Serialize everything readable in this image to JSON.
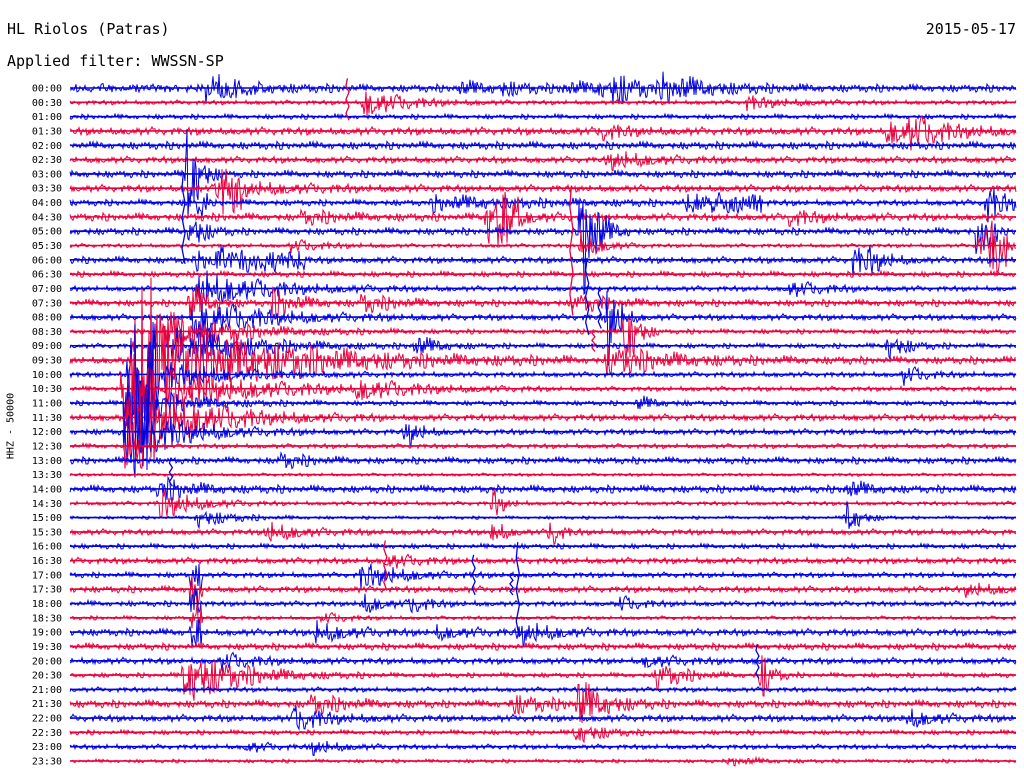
{
  "header": {
    "station": "HL Riolos (Patras)",
    "date": "2015-05-17",
    "filter": "Applied filter: WWSSN-SP"
  },
  "chart_data": {
    "type": "line",
    "subtype": "helicorder",
    "ylabel": "HHZ - 50000",
    "colors": [
      "#0000e0",
      "#e8003c"
    ],
    "row_times": [
      "00:00",
      "00:30",
      "01:00",
      "01:30",
      "02:00",
      "02:30",
      "03:00",
      "03:30",
      "04:00",
      "04:30",
      "05:00",
      "05:30",
      "06:00",
      "06:30",
      "07:00",
      "07:30",
      "08:00",
      "08:30",
      "09:00",
      "09:30",
      "10:00",
      "10:30",
      "11:00",
      "11:30",
      "12:00",
      "12:30",
      "13:00",
      "13:30",
      "14:00",
      "14:30",
      "15:00",
      "15:30",
      "16:00",
      "16:30",
      "17:00",
      "17:30",
      "18:00",
      "18:30",
      "19:00",
      "19:30",
      "20:00",
      "20:30",
      "21:00",
      "21:30",
      "22:00",
      "22:30",
      "23:00",
      "23:30"
    ],
    "minutes_per_row": 30,
    "events": [
      {
        "row": 0,
        "minute": 4.3,
        "amp": 14,
        "dur": 1.2
      },
      {
        "row": 0,
        "minute": 12.3,
        "amp": 6,
        "dur": 1.2
      },
      {
        "row": 0,
        "minute": 13.7,
        "amp": 5,
        "dur": 0.8
      },
      {
        "row": 0,
        "minute": 15.6,
        "amp": 5,
        "dur": 1.5
      },
      {
        "row": 0,
        "minute": 16.7,
        "amp": 5,
        "dur": 1.5
      },
      {
        "row": 0,
        "minute": 17.2,
        "amp": 12,
        "dur": 0.8
      },
      {
        "row": 0,
        "minute": 18.8,
        "amp": 12,
        "dur": 1.5
      },
      {
        "row": 1,
        "minute": 9.3,
        "amp": 15,
        "dur": 1.2
      },
      {
        "row": 1,
        "minute": 21.4,
        "amp": 7,
        "dur": 1.2
      },
      {
        "row": 3,
        "minute": 16.8,
        "amp": 8,
        "dur": 0.8
      },
      {
        "row": 3,
        "minute": 25.9,
        "amp": 12,
        "dur": 1.5
      },
      {
        "row": 3,
        "minute": 26.6,
        "amp": 10,
        "dur": 1.0
      },
      {
        "row": 5,
        "minute": 17.0,
        "amp": 10,
        "dur": 1.2
      },
      {
        "row": 6,
        "minute": 3.7,
        "amp": 80,
        "dur": 0.3
      },
      {
        "row": 7,
        "minute": 4.6,
        "amp": 9,
        "dur": 2.0
      },
      {
        "row": 8,
        "minute": 11.5,
        "amp": 7,
        "dur": 3.0
      },
      {
        "row": 8,
        "minute": 29.0,
        "amp": 20,
        "dur": 0.7
      },
      {
        "row": 9,
        "minute": 7.3,
        "amp": 6,
        "dur": 1.2
      },
      {
        "row": 9,
        "minute": 13.2,
        "amp": 28,
        "dur": 0.7
      },
      {
        "row": 9,
        "minute": 22.8,
        "amp": 7,
        "dur": 1.0
      },
      {
        "row": 10,
        "minute": 3.8,
        "amp": 22,
        "dur": 0.4
      },
      {
        "row": 10,
        "minute": 16.2,
        "amp": 95,
        "dur": 0.4
      },
      {
        "row": 11,
        "minute": 7.0,
        "amp": 6,
        "dur": 1.0
      },
      {
        "row": 11,
        "minute": 16.2,
        "amp": 15,
        "dur": 0.6
      },
      {
        "row": 11,
        "minute": 29.0,
        "amp": 20,
        "dur": 1.0
      },
      {
        "row": 12,
        "minute": 4.0,
        "amp": 8,
        "dur": 1.2
      },
      {
        "row": 12,
        "minute": 24.8,
        "amp": 15,
        "dur": 0.6
      },
      {
        "row": 12,
        "minute": 25.3,
        "amp": 10,
        "dur": 0.5
      },
      {
        "row": 14,
        "minute": 4.0,
        "amp": 20,
        "dur": 2.0
      },
      {
        "row": 14,
        "minute": 22.8,
        "amp": 8,
        "dur": 1.0
      },
      {
        "row": 15,
        "minute": 3.8,
        "amp": 22,
        "dur": 0.5
      },
      {
        "row": 15,
        "minute": 6.4,
        "amp": 14,
        "dur": 0.8
      },
      {
        "row": 15,
        "minute": 9.2,
        "amp": 9,
        "dur": 1.0
      },
      {
        "row": 15,
        "minute": 16.0,
        "amp": 9,
        "dur": 1.0
      },
      {
        "row": 16,
        "minute": 3.9,
        "amp": 20,
        "dur": 2.0
      },
      {
        "row": 16,
        "minute": 17.0,
        "amp": 65,
        "dur": 0.3
      },
      {
        "row": 17,
        "minute": 3.0,
        "amp": 20,
        "dur": 2.0
      },
      {
        "row": 17,
        "minute": 17.6,
        "amp": 60,
        "dur": 0.3
      },
      {
        "row": 18,
        "minute": 3.8,
        "amp": 20,
        "dur": 2.0
      },
      {
        "row": 18,
        "minute": 10.9,
        "amp": 10,
        "dur": 0.8
      },
      {
        "row": 18,
        "minute": 25.9,
        "amp": 14,
        "dur": 0.6
      },
      {
        "row": 19,
        "minute": 2.0,
        "amp": 60,
        "dur": 3.5
      },
      {
        "row": 19,
        "minute": 17.0,
        "amp": 14,
        "dur": 2.0
      },
      {
        "row": 20,
        "minute": 2.0,
        "amp": 20,
        "dur": 2.0
      },
      {
        "row": 20,
        "minute": 26.4,
        "amp": 10,
        "dur": 0.6
      },
      {
        "row": 21,
        "minute": 3.0,
        "amp": 20,
        "dur": 3.0
      },
      {
        "row": 21,
        "minute": 9.1,
        "amp": 9,
        "dur": 1.6
      },
      {
        "row": 22,
        "minute": 2.0,
        "amp": 20,
        "dur": 1.5
      },
      {
        "row": 22,
        "minute": 18.0,
        "amp": 7,
        "dur": 0.6
      },
      {
        "row": 23,
        "minute": 2.0,
        "amp": 30,
        "dur": 2.0
      },
      {
        "row": 23,
        "minute": 3.0,
        "amp": 9,
        "dur": 1.6
      },
      {
        "row": 24,
        "minute": 2.0,
        "amp": 30,
        "dur": 1.5
      },
      {
        "row": 24,
        "minute": 10.6,
        "amp": 20,
        "dur": 0.4
      },
      {
        "row": 26,
        "minute": 6.6,
        "amp": 8,
        "dur": 0.8
      },
      {
        "row": 28,
        "minute": 2.8,
        "amp": 12,
        "dur": 1.0
      },
      {
        "row": 28,
        "minute": 24.6,
        "amp": 10,
        "dur": 0.6
      },
      {
        "row": 29,
        "minute": 2.8,
        "amp": 18,
        "dur": 1.0
      },
      {
        "row": 29,
        "minute": 13.4,
        "amp": 20,
        "dur": 0.3
      },
      {
        "row": 30,
        "minute": 4.0,
        "amp": 10,
        "dur": 1.0
      },
      {
        "row": 30,
        "minute": 24.6,
        "amp": 22,
        "dur": 0.4
      },
      {
        "row": 31,
        "minute": 6.2,
        "amp": 10,
        "dur": 1.0
      },
      {
        "row": 31,
        "minute": 13.4,
        "amp": 18,
        "dur": 0.3
      },
      {
        "row": 31,
        "minute": 15.2,
        "amp": 18,
        "dur": 0.3
      },
      {
        "row": 33,
        "minute": 10.0,
        "amp": 8,
        "dur": 0.8
      },
      {
        "row": 34,
        "minute": 9.2,
        "amp": 14,
        "dur": 1.2
      },
      {
        "row": 35,
        "minute": 28.4,
        "amp": 6,
        "dur": 1.0
      },
      {
        "row": 36,
        "minute": 9.2,
        "amp": 12,
        "dur": 0.6
      },
      {
        "row": 36,
        "minute": 10.8,
        "amp": 8,
        "dur": 0.6
      },
      {
        "row": 36,
        "minute": 17.4,
        "amp": 8,
        "dur": 0.6
      },
      {
        "row": 37,
        "minute": 8.0,
        "amp": 6,
        "dur": 0.6
      },
      {
        "row": 38,
        "minute": 7.8,
        "amp": 10,
        "dur": 1.0
      },
      {
        "row": 38,
        "minute": 11.6,
        "amp": 6,
        "dur": 1.0
      },
      {
        "row": 38,
        "minute": 14.2,
        "amp": 12,
        "dur": 1.0
      },
      {
        "row": 40,
        "minute": 4.8,
        "amp": 8,
        "dur": 1.0
      },
      {
        "row": 40,
        "minute": 18.2,
        "amp": 6,
        "dur": 1.0
      },
      {
        "row": 41,
        "minute": 3.6,
        "amp": 30,
        "dur": 1.6
      },
      {
        "row": 41,
        "minute": 18.6,
        "amp": 15,
        "dur": 0.8
      },
      {
        "row": 41,
        "minute": 21.9,
        "amp": 30,
        "dur": 0.3
      },
      {
        "row": 43,
        "minute": 7.6,
        "amp": 10,
        "dur": 1.0
      },
      {
        "row": 43,
        "minute": 14.0,
        "amp": 9,
        "dur": 1.2
      },
      {
        "row": 43,
        "minute": 16.1,
        "amp": 24,
        "dur": 0.8
      },
      {
        "row": 44,
        "minute": 7.1,
        "amp": 12,
        "dur": 1.0
      },
      {
        "row": 44,
        "minute": 26.5,
        "amp": 10,
        "dur": 0.8
      },
      {
        "row": 45,
        "minute": 16.0,
        "amp": 12,
        "dur": 0.8
      },
      {
        "row": 46,
        "minute": 5.6,
        "amp": 6,
        "dur": 0.6
      },
      {
        "row": 46,
        "minute": 7.6,
        "amp": 8,
        "dur": 0.8
      },
      {
        "row": 47,
        "minute": 20.9,
        "amp": 5,
        "dur": 0.8
      }
    ],
    "bursts": [
      {
        "row": 7,
        "minute": 4.8,
        "amp": 18,
        "dur": 0.7
      },
      {
        "row": 8,
        "minute": 4.0,
        "amp": 14,
        "dur": 0.4
      },
      {
        "row": 8,
        "minute": 19.5,
        "amp": 8,
        "dur": 2.5
      },
      {
        "row": 9,
        "minute": 13.5,
        "amp": 16,
        "dur": 0.8
      },
      {
        "row": 10,
        "minute": 28.7,
        "amp": 22,
        "dur": 0.7
      },
      {
        "row": 11,
        "minute": 28.8,
        "amp": 14,
        "dur": 0.9
      },
      {
        "row": 12,
        "minute": 4.5,
        "amp": 8,
        "dur": 3.0
      },
      {
        "row": 18,
        "minute": 3.2,
        "amp": 18,
        "dur": 0.4
      },
      {
        "row": 19,
        "minute": 2.0,
        "amp": 40,
        "dur": 1.0
      },
      {
        "row": 20,
        "minute": 1.8,
        "amp": 40,
        "dur": 1.0
      },
      {
        "row": 21,
        "minute": 1.6,
        "amp": 40,
        "dur": 1.0
      },
      {
        "row": 22,
        "minute": 1.7,
        "amp": 36,
        "dur": 1.0
      },
      {
        "row": 23,
        "minute": 1.7,
        "amp": 36,
        "dur": 1.0
      },
      {
        "row": 24,
        "minute": 1.7,
        "amp": 30,
        "dur": 0.8
      },
      {
        "row": 25,
        "minute": 1.7,
        "amp": 24,
        "dur": 0.6
      },
      {
        "row": 34,
        "minute": 3.8,
        "amp": 14,
        "dur": 0.4
      },
      {
        "row": 35,
        "minute": 3.8,
        "amp": 14,
        "dur": 0.4
      },
      {
        "row": 36,
        "minute": 3.8,
        "amp": 14,
        "dur": 0.4
      },
      {
        "row": 37,
        "minute": 3.8,
        "amp": 14,
        "dur": 0.4
      },
      {
        "row": 38,
        "minute": 3.8,
        "amp": 14,
        "dur": 0.4
      }
    ],
    "spikes": [
      {
        "row": 1,
        "minute": 8.8,
        "up": 24,
        "down": 18
      },
      {
        "row": 6,
        "minute": 3.6,
        "up": 2,
        "down": 90
      },
      {
        "row": 11,
        "minute": 15.9,
        "up": 60,
        "down": 70
      },
      {
        "row": 12,
        "minute": 16.4,
        "up": 2,
        "down": 75
      },
      {
        "row": 14,
        "minute": 16.8,
        "up": 2,
        "down": 40
      },
      {
        "row": 17,
        "minute": 16.6,
        "up": 2,
        "down": 20
      },
      {
        "row": 26,
        "minute": 3.2,
        "up": 2,
        "down": 26
      },
      {
        "row": 33,
        "minute": 10.0,
        "up": 20,
        "down": 30
      },
      {
        "row": 34,
        "minute": 14.0,
        "up": 2,
        "down": 20
      },
      {
        "row": 34,
        "minute": 12.8,
        "up": 20,
        "down": 20
      },
      {
        "row": 38,
        "minute": 14.2,
        "up": 90,
        "down": 5
      },
      {
        "row": 40,
        "minute": 21.8,
        "up": 16,
        "down": 18
      }
    ],
    "noise": {
      "min_amp": 2,
      "max_amp": 5
    }
  }
}
